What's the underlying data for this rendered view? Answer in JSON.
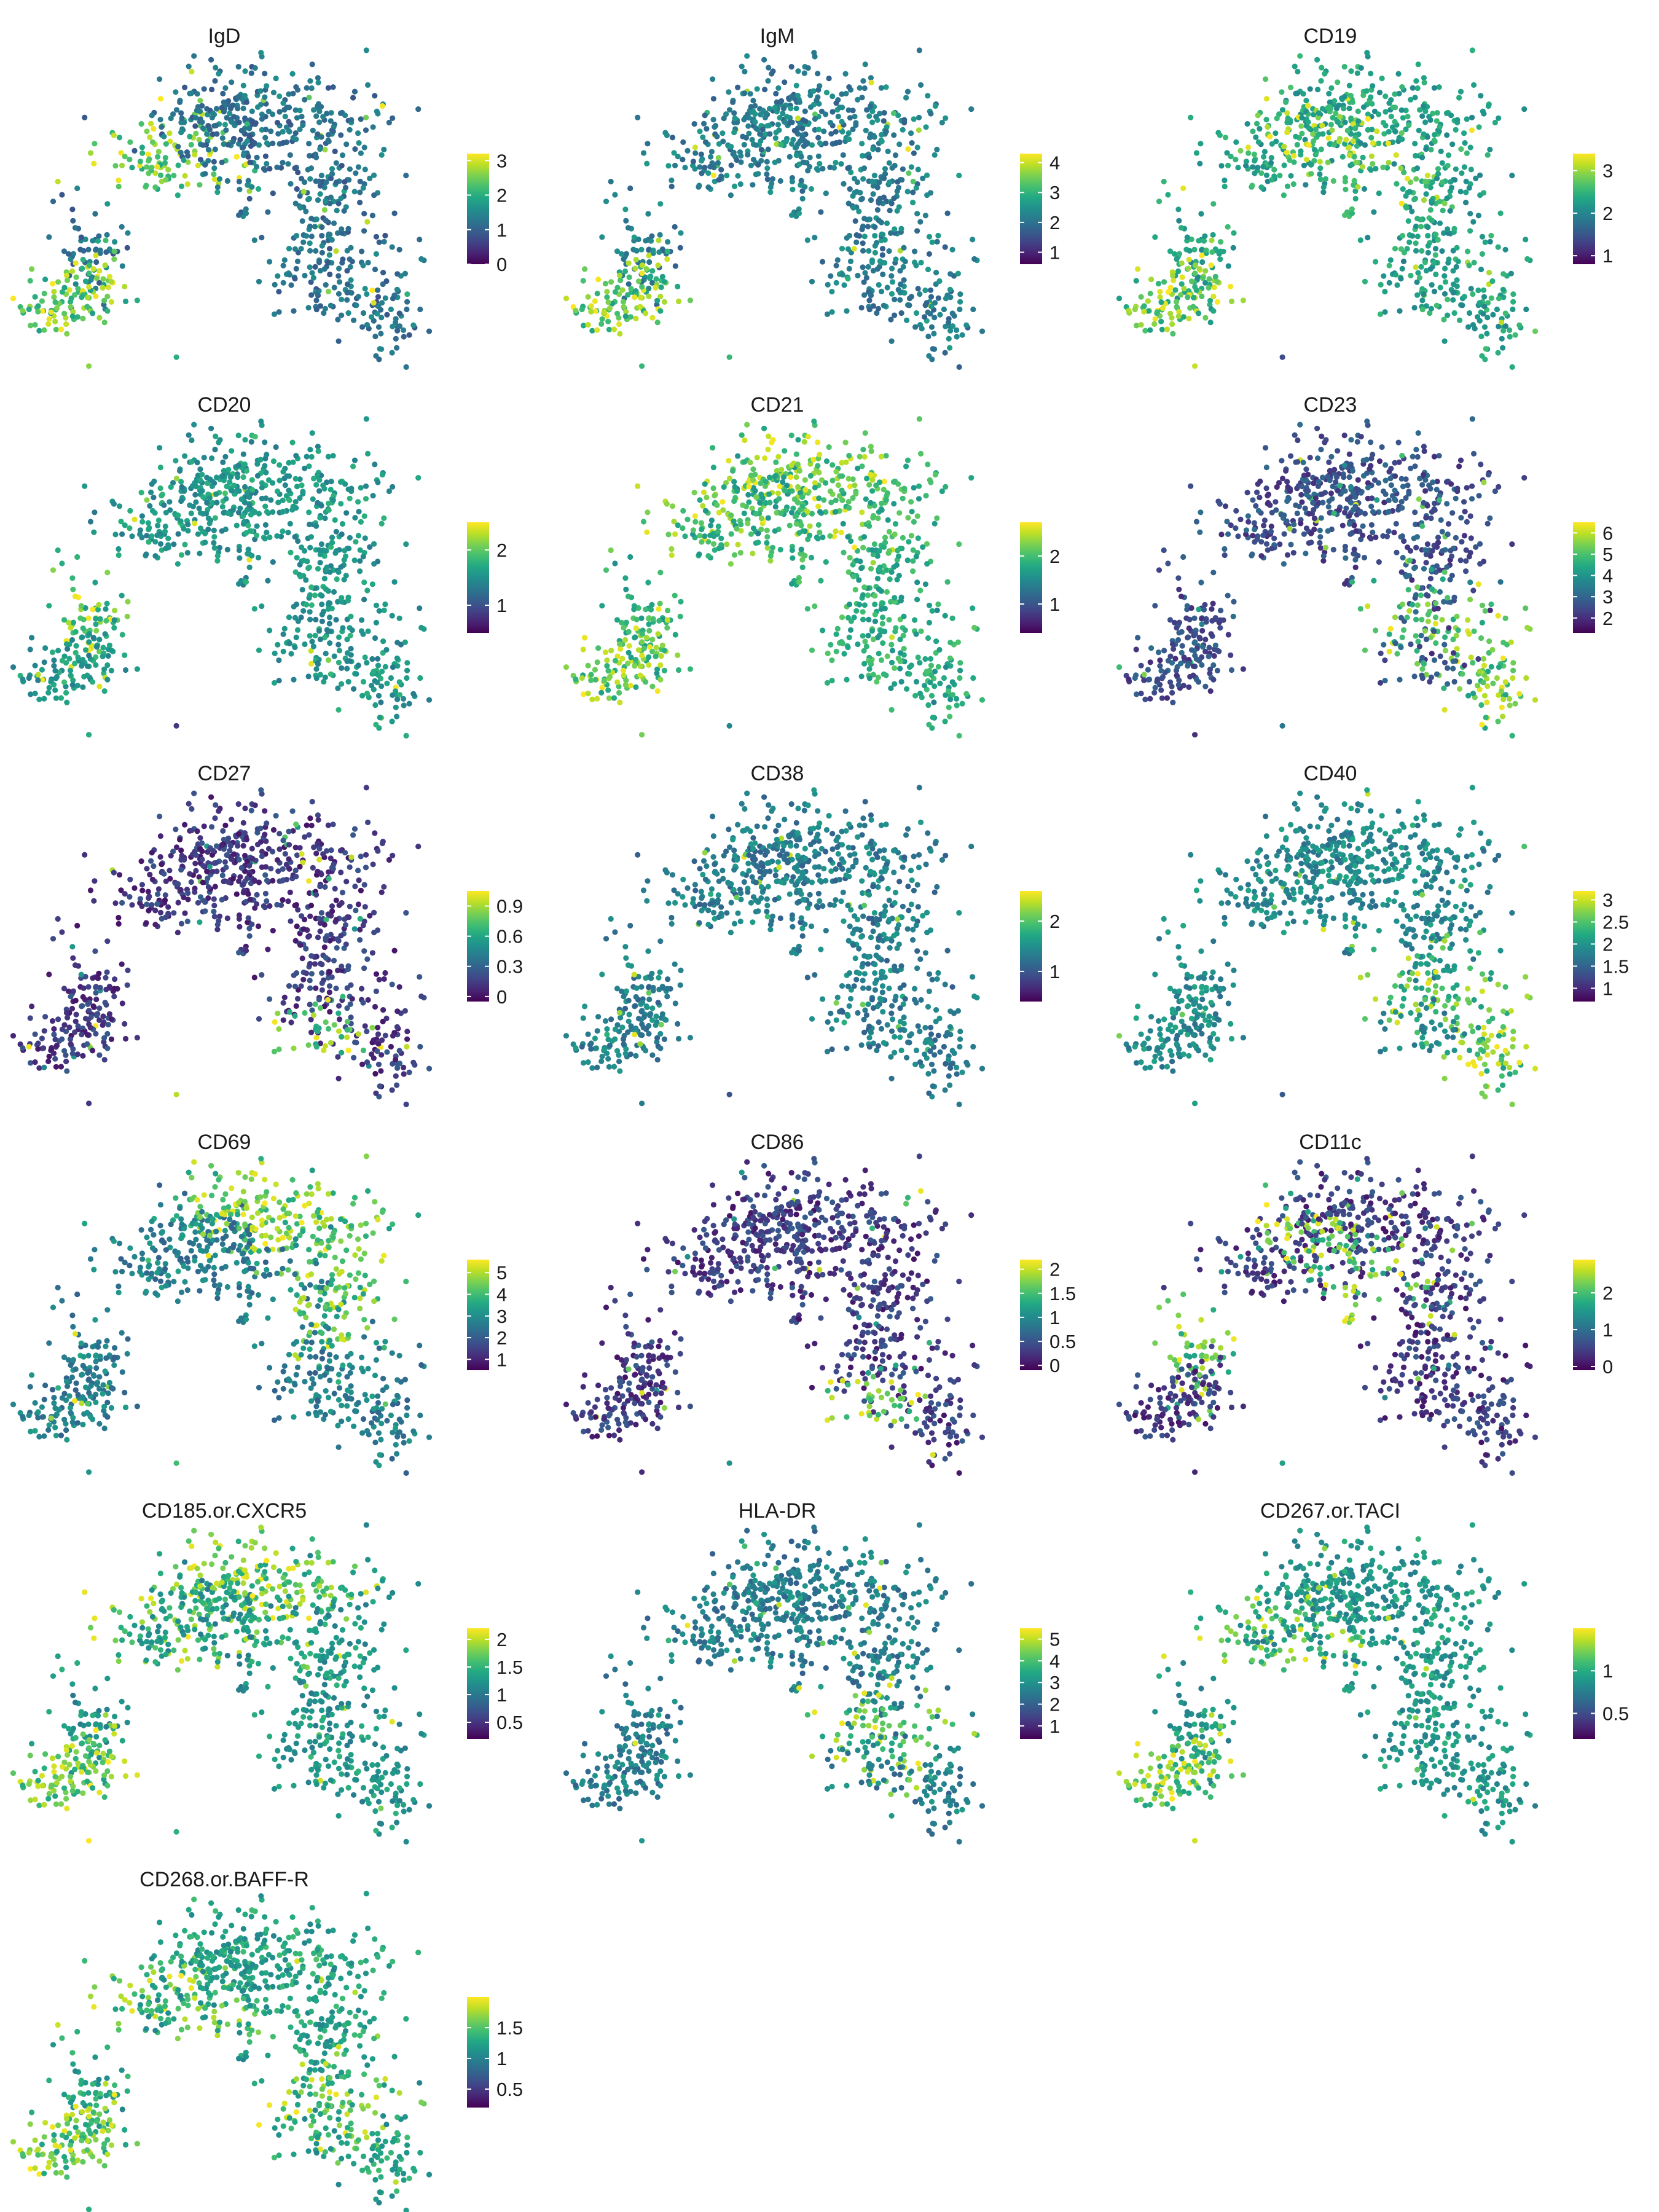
{
  "chart_data": [
    {
      "type": "scatter",
      "title": "IgD",
      "scale_range": [
        0,
        3.2
      ],
      "ticks": [
        "0",
        "1",
        "2",
        "3"
      ],
      "tick_values": [
        0,
        1,
        2,
        3
      ],
      "hot": [
        "mouth",
        "hump_left",
        "arm_tip"
      ],
      "base": 0.25
    },
    {
      "type": "scatter",
      "title": "IgM",
      "scale_range": [
        0.6,
        4.3
      ],
      "ticks": [
        "1",
        "2",
        "3",
        "4"
      ],
      "tick_values": [
        1,
        2,
        3,
        4
      ],
      "hot": [
        "mouth"
      ],
      "base": 0.3
    },
    {
      "type": "scatter",
      "title": "CD19",
      "scale_range": [
        0.8,
        3.4
      ],
      "ticks": [
        "1",
        "2",
        "3"
      ],
      "tick_values": [
        1,
        2,
        3
      ],
      "hot": [
        "hump_center",
        "mouth"
      ],
      "base": 0.45
    },
    {
      "type": "scatter",
      "title": "CD20",
      "scale_range": [
        0.5,
        2.5
      ],
      "ticks": [
        "1",
        "2"
      ],
      "tick_values": [
        1,
        2
      ],
      "hot": [
        "mouth_top"
      ],
      "base": 0.4
    },
    {
      "type": "scatter",
      "title": "CD21",
      "scale_range": [
        0.4,
        2.7
      ],
      "ticks": [
        "1",
        "2"
      ],
      "tick_values": [
        1,
        2
      ],
      "hot": [
        "hump_left",
        "hump_top",
        "mouth"
      ],
      "base": 0.5
    },
    {
      "type": "scatter",
      "title": "CD23",
      "scale_range": [
        1.3,
        6.5
      ],
      "ticks": [
        "2",
        "3",
        "4",
        "5",
        "6"
      ],
      "tick_values": [
        2,
        3,
        4,
        5,
        6
      ],
      "hot": [
        "lobe",
        "diamond"
      ],
      "base": 0.12
    },
    {
      "type": "scatter",
      "title": "CD27",
      "scale_range": [
        -0.05,
        1.05
      ],
      "ticks": [
        "0",
        "0.3",
        "0.6",
        "0.9"
      ],
      "tick_values": [
        0,
        0.3,
        0.6,
        0.9
      ],
      "hot": [
        "lobe_low"
      ],
      "base": 0.05
    },
    {
      "type": "scatter",
      "title": "CD38",
      "scale_range": [
        0.4,
        2.6
      ],
      "ticks": [
        "1",
        "2"
      ],
      "tick_values": [
        1,
        2
      ],
      "hot": [
        "mouth_low"
      ],
      "base": 0.3
    },
    {
      "type": "scatter",
      "title": "CD40",
      "scale_range": [
        0.7,
        3.2
      ],
      "ticks": [
        "1",
        "1.5",
        "2",
        "2.5",
        "3"
      ],
      "tick_values": [
        1,
        1.5,
        2,
        2.5,
        3
      ],
      "hot": [
        "lobe",
        "diamond"
      ],
      "base": 0.35
    },
    {
      "type": "scatter",
      "title": "CD69",
      "scale_range": [
        0.5,
        5.6
      ],
      "ticks": [
        "1",
        "2",
        "3",
        "4",
        "5"
      ],
      "tick_values": [
        1,
        2,
        3,
        4,
        5
      ],
      "hot": [
        "hump_right",
        "hump_top"
      ],
      "base": 0.3
    },
    {
      "type": "scatter",
      "title": "CD86",
      "scale_range": [
        -0.1,
        2.2
      ],
      "ticks": [
        "0",
        "0.5",
        "1",
        "1.5",
        "2"
      ],
      "tick_values": [
        0,
        0.5,
        1,
        1.5,
        2
      ],
      "hot": [
        "lobe_low"
      ],
      "base": 0.05
    },
    {
      "type": "scatter",
      "title": "CD11c",
      "scale_range": [
        -0.1,
        2.9
      ],
      "ticks": [
        "0",
        "1",
        "2"
      ],
      "tick_values": [
        0,
        1,
        2
      ],
      "hot": [
        "hump_center",
        "mouth_top"
      ],
      "base": 0.05
    },
    {
      "type": "scatter",
      "title": "CD185.or.CXCR5",
      "scale_range": [
        0.2,
        2.2
      ],
      "ticks": [
        "0.5",
        "1",
        "1.5",
        "2"
      ],
      "tick_values": [
        0.5,
        1,
        1.5,
        2
      ],
      "hot": [
        "hump_top",
        "hump_left",
        "mouth"
      ],
      "base": 0.4
    },
    {
      "type": "scatter",
      "title": "HLA-DR",
      "scale_range": [
        0.4,
        5.5
      ],
      "ticks": [
        "1",
        "2",
        "3",
        "4",
        "5"
      ],
      "tick_values": [
        1,
        2,
        3,
        4,
        5
      ],
      "hot": [
        "lobe"
      ],
      "base": 0.3
    },
    {
      "type": "scatter",
      "title": "CD267.or.TACI",
      "scale_range": [
        0.2,
        1.5
      ],
      "ticks": [
        "0.5",
        "1"
      ],
      "tick_values": [
        0.5,
        1
      ],
      "hot": [
        "hump_left",
        "mouth"
      ],
      "base": 0.4
    },
    {
      "type": "scatter",
      "title": "CD268.or.BAFF-R",
      "scale_range": [
        0.2,
        2.0
      ],
      "ticks": [
        "0.5",
        "1",
        "1.5"
      ],
      "tick_values": [
        0.5,
        1,
        1.5
      ],
      "hot": [
        "hump_left",
        "lobe",
        "mouth"
      ],
      "base": 0.45
    }
  ]
}
